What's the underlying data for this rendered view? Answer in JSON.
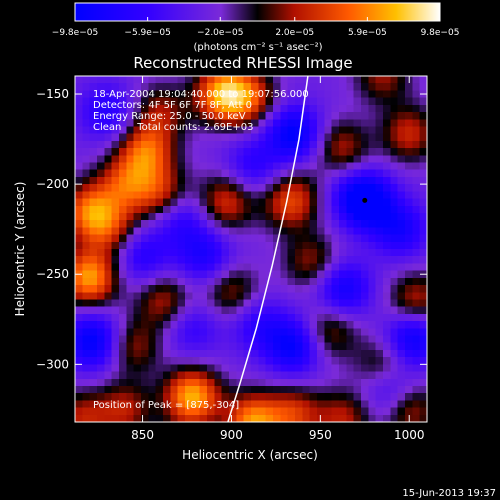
{
  "chart_data": {
    "type": "heatmap",
    "title": "Reconstructed RHESSI Image",
    "xlabel": "Heliocentric X (arcsec)",
    "ylabel": "Heliocentric Y (arcsec)",
    "xlim": [
      812,
      1010
    ],
    "ylim": [
      -332,
      -140
    ],
    "x_ticks": [
      850,
      900,
      950,
      1000
    ],
    "x_tick_labels": [
      "850",
      "900",
      "950",
      "1000"
    ],
    "y_ticks": [
      -150,
      -200,
      -250,
      -300
    ],
    "y_tick_labels": [
      "−150",
      "−200",
      "−250",
      "−300"
    ],
    "colorbar": {
      "ticks": [
        -9.8e-05,
        -5.9e-05,
        -2e-05,
        2e-05,
        5.9e-05,
        9.8e-05
      ],
      "tick_labels": [
        "−9.8e−05",
        "−5.9e−05",
        "−2.0e−05",
        "2.0e−05",
        "5.9e−05",
        "9.8e−05"
      ],
      "range": [
        -9.8e-05,
        9.8e-05
      ],
      "units_label": "(photons cm⁻² s⁻¹ asec⁻²)"
    },
    "annotations": [
      "18-Apr-2004 19:04:40.000 to 19:07:56.000",
      "Detectors: 4F 5F 6F 7F 8F, Att 0",
      "Energy Range: 25.0 - 50.0 keV",
      "Clean     Total counts: 2.69E+03"
    ],
    "peak_label": "Position of Peak = [875,-304]",
    "peak_position": [
      875,
      -304
    ],
    "min_marker": [
      975,
      -209
    ],
    "limb_curve": {
      "x": [
        943,
        938,
        931,
        923,
        914,
        905,
        898
      ],
      "y": [
        -140,
        -175,
        -210,
        -245,
        -280,
        -310,
        -332
      ]
    },
    "blobs": [
      {
        "x": 878,
        "y": -318,
        "a": 1.0
      },
      {
        "x": 870,
        "y": -355,
        "a": 0.85
      },
      {
        "x": 912,
        "y": -332,
        "a": 0.9
      },
      {
        "x": 935,
        "y": -328,
        "a": 0.6
      },
      {
        "x": 963,
        "y": -330,
        "a": 0.5
      },
      {
        "x": 1000,
        "y": -325,
        "a": 0.55
      },
      {
        "x": 820,
        "y": -252,
        "a": 0.95
      },
      {
        "x": 820,
        "y": -215,
        "a": 0.75
      },
      {
        "x": 816,
        "y": -330,
        "a": 0.5
      },
      {
        "x": 832,
        "y": -225,
        "a": 0.5
      },
      {
        "x": 895,
        "y": -150,
        "a": 0.95
      },
      {
        "x": 910,
        "y": -152,
        "a": 0.6
      },
      {
        "x": 852,
        "y": -182,
        "a": 0.75
      },
      {
        "x": 840,
        "y": -200,
        "a": 0.6
      },
      {
        "x": 860,
        "y": -205,
        "a": 0.55
      },
      {
        "x": 897,
        "y": -210,
        "a": 0.6
      },
      {
        "x": 933,
        "y": -210,
        "a": 0.65
      },
      {
        "x": 950,
        "y": -200,
        "a": 0.55
      },
      {
        "x": 962,
        "y": -180,
        "a": 0.5
      },
      {
        "x": 1000,
        "y": -172,
        "a": 0.55
      },
      {
        "x": 1004,
        "y": -265,
        "a": 0.55
      },
      {
        "x": 945,
        "y": -243,
        "a": 0.45
      },
      {
        "x": 862,
        "y": -265,
        "a": 0.5
      },
      {
        "x": 900,
        "y": -260,
        "a": 0.45
      },
      {
        "x": 845,
        "y": -290,
        "a": 0.45
      },
      {
        "x": 955,
        "y": -282,
        "a": 0.45
      },
      {
        "x": 985,
        "y": -300,
        "a": 0.4
      },
      {
        "x": 860,
        "y": -160,
        "a": 0.45
      },
      {
        "x": 840,
        "y": -325,
        "a": 0.5
      },
      {
        "x": 985,
        "y": -140,
        "a": 0.45
      },
      {
        "x": 975,
        "y": -209,
        "a": -1.0
      },
      {
        "x": 935,
        "y": -172,
        "a": -0.75
      },
      {
        "x": 935,
        "y": -290,
        "a": -0.7
      },
      {
        "x": 1002,
        "y": -285,
        "a": -0.7
      },
      {
        "x": 822,
        "y": -287,
        "a": -0.75
      },
      {
        "x": 963,
        "y": -258,
        "a": -0.6
      },
      {
        "x": 885,
        "y": -240,
        "a": -0.5
      },
      {
        "x": 850,
        "y": -240,
        "a": -0.45
      },
      {
        "x": 952,
        "y": -200,
        "a": -0.55
      },
      {
        "x": 995,
        "y": -225,
        "a": -0.55
      },
      {
        "x": 878,
        "y": -280,
        "a": -0.35
      },
      {
        "x": 915,
        "y": -278,
        "a": -0.4
      },
      {
        "x": 830,
        "y": -160,
        "a": -0.45
      },
      {
        "x": 990,
        "y": -315,
        "a": -0.45
      },
      {
        "x": 912,
        "y": -190,
        "a": -0.4
      },
      {
        "x": 872,
        "y": -220,
        "a": -0.4
      }
    ]
  },
  "footer": {
    "date": "15-Jun-2013 19:37"
  }
}
